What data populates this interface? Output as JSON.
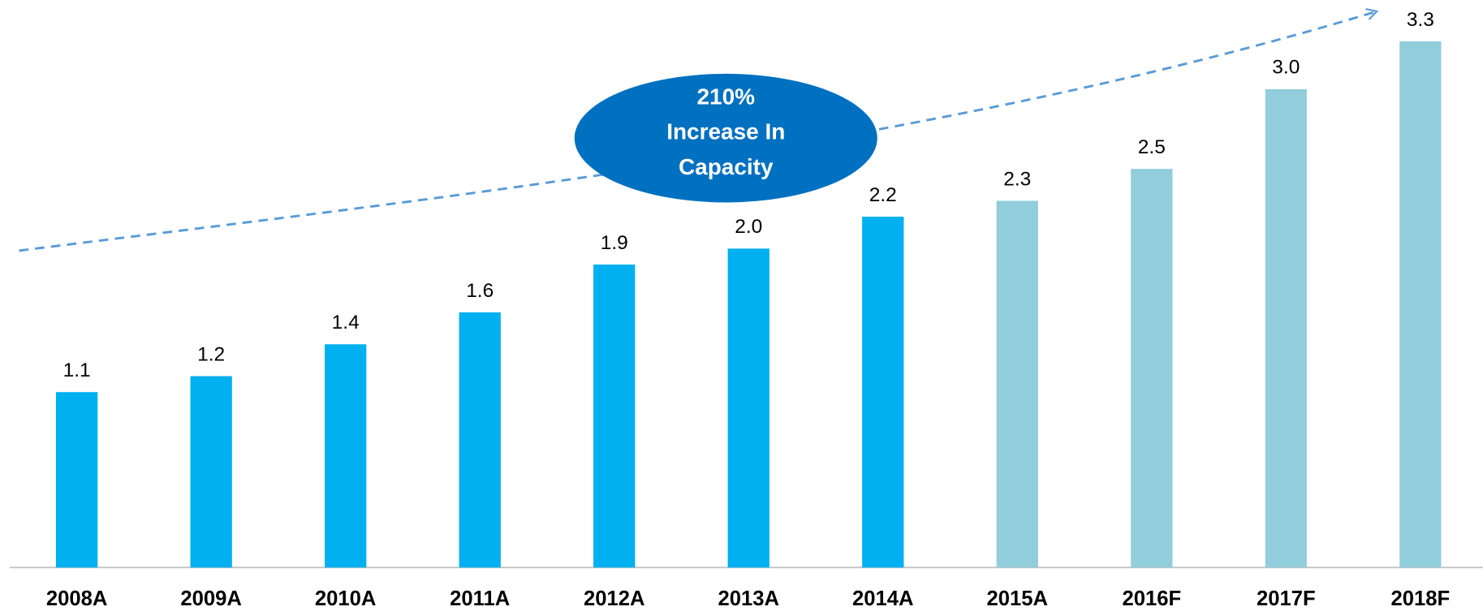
{
  "chart_data": {
    "type": "bar",
    "categories": [
      "2008A",
      "2009A",
      "2010A",
      "2011A",
      "2012A",
      "2013A",
      "2014A",
      "2015A",
      "2016F",
      "2017F",
      "2018F"
    ],
    "values": [
      1.1,
      1.2,
      1.4,
      1.6,
      1.9,
      2.0,
      2.2,
      2.3,
      2.5,
      3.0,
      3.3
    ],
    "value_labels": [
      "1.1",
      "1.2",
      "1.4",
      "1.6",
      "1.9",
      "2.0",
      "2.2",
      "2.3",
      "2.5",
      "3.0",
      "3.3"
    ],
    "colors": [
      "#00b0f0",
      "#00b0f0",
      "#00b0f0",
      "#00b0f0",
      "#00b0f0",
      "#00b0f0",
      "#00b0f0",
      "#92cddc",
      "#92cddc",
      "#92cddc",
      "#92cddc"
    ],
    "ylim": [
      0,
      3.5
    ],
    "annotation": [
      "210%",
      "Increase In",
      "Capacity"
    ]
  }
}
